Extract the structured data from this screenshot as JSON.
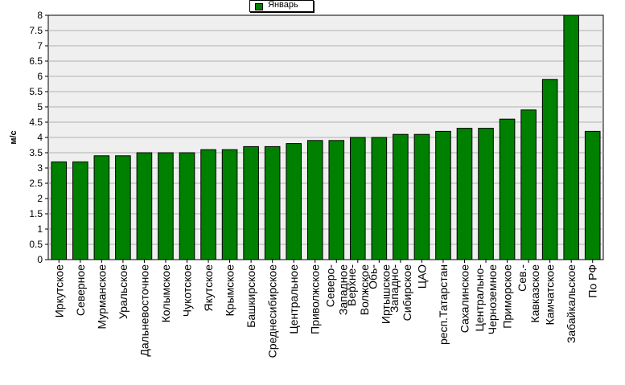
{
  "chart_data": {
    "type": "bar",
    "ylabel": "м/с",
    "ylim": [
      0,
      8
    ],
    "yticks": [
      "0",
      "0.5",
      "1",
      "1.5",
      "2",
      "2.5",
      "3",
      "3.5",
      "4",
      "4.5",
      "5",
      "5.5",
      "6",
      "6.5",
      "7",
      "7.5",
      "8"
    ],
    "grid": true,
    "legend_position": "top-center",
    "series": [
      {
        "name": "Январь",
        "color": "#008000",
        "values": [
          3.2,
          3.2,
          3.4,
          3.4,
          3.5,
          3.5,
          3.5,
          3.6,
          3.6,
          3.7,
          3.7,
          3.8,
          3.9,
          3.9,
          4.0,
          4.0,
          4.1,
          4.1,
          4.2,
          4.3,
          4.3,
          4.6,
          4.9,
          5.9,
          8.0,
          4.2
        ]
      }
    ],
    "categories": [
      "Иркутское",
      "Северное",
      "Мурманское",
      "Уральское",
      "Дальневосточное",
      "Колымское",
      "Чукотское",
      "Якутское",
      "Крымское",
      "Башкирское",
      "Среднесибирское",
      "Центральное",
      "Приволжское",
      "Северо-Западное",
      "Верхне-Волжское",
      "Обь-Иртышское",
      "Западно-Сибирское",
      "ЦАО",
      "респ.Татарстан",
      "Сахалинское",
      "Центрально-Черноземное",
      "Приморское",
      "Сев.-Кавказское",
      "Камчатское",
      "Забайкальское",
      "По РФ"
    ]
  }
}
